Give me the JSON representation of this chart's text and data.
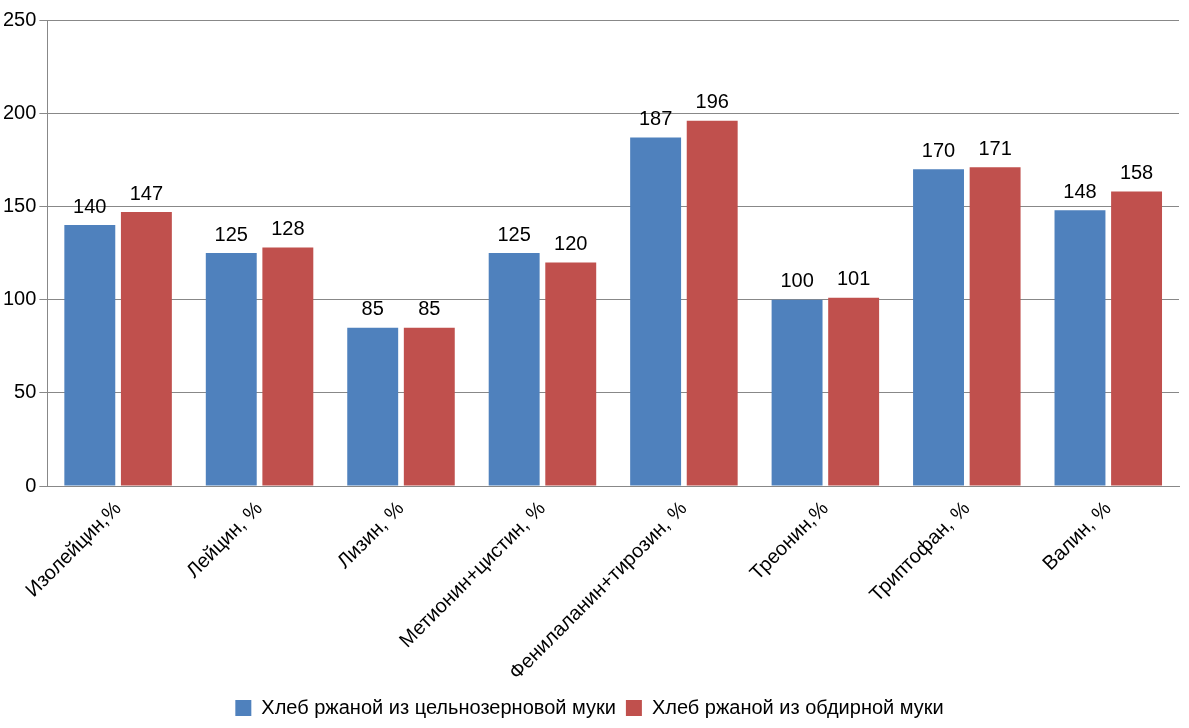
{
  "chart_data": {
    "type": "bar",
    "categories": [
      "Изолейцин,%",
      "Лейцин, %",
      "Лизин, %",
      "Метионин+цистин, %",
      "Фенилаланин+тирозин, %",
      "Треонин,%",
      "Триптофан, %",
      "Валин, %"
    ],
    "series": [
      {
        "name": "Хлеб ржаной из цельнозерновой муки",
        "color": "#4f81bd",
        "values": [
          140,
          125,
          85,
          125,
          187,
          100,
          170,
          148
        ]
      },
      {
        "name": "Хлеб ржаной из обдирной муки",
        "color": "#c0504d",
        "values": [
          147,
          128,
          85,
          120,
          196,
          101,
          171,
          158
        ]
      }
    ],
    "ylim": [
      0,
      250
    ],
    "yticks": [
      0,
      50,
      100,
      150,
      200,
      250
    ],
    "grid": "y",
    "legend": "bottom",
    "data_labels": true
  }
}
